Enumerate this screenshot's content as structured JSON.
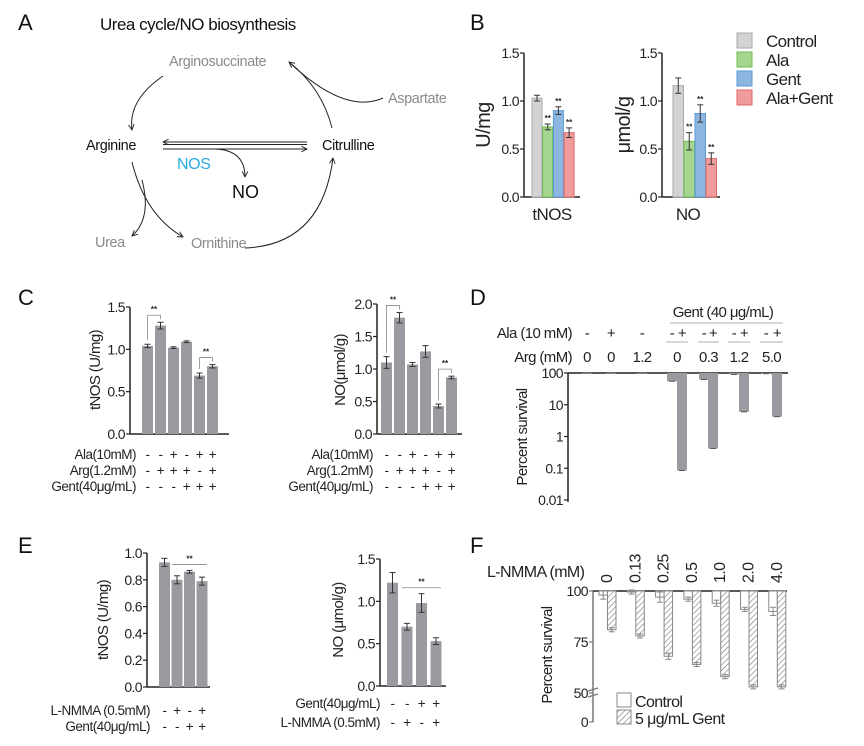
{
  "panel_labels": {
    "a": "A",
    "b": "B",
    "c": "C",
    "d": "D",
    "e": "E",
    "f": "F"
  },
  "diagram": {
    "title": "Urea cycle/NO biosynthesis",
    "nodes": {
      "arginosuccinate": "Arginosuccinate",
      "aspartate": "Aspartate",
      "arginine": "Arginine",
      "citrulline": "Citrulline",
      "nos": "NOS",
      "no": "NO",
      "urea": "Urea",
      "ornithine": "Ornithine"
    },
    "colors": {
      "enzyme": "#29a9e0",
      "secondary": "#8a8a8a",
      "primary": "#111111"
    }
  },
  "chart_data": [
    {
      "id": "b-tnos",
      "type": "bar",
      "ylabel": "U/mg",
      "xlabel": "tNOS",
      "ylim": [
        0,
        1.5
      ],
      "y_ticks": [
        0,
        0.5,
        1.0,
        1.5
      ],
      "y_tick_labels": [
        "0.0",
        "0.5",
        "1.0",
        "1.5"
      ],
      "categories": [
        "Control",
        "Ala",
        "Gent",
        "Ala+Gent"
      ],
      "series": [
        {
          "name": "tNOS",
          "values": [
            1.03,
            0.73,
            0.9,
            0.67
          ],
          "errors": [
            0.03,
            0.03,
            0.04,
            0.05
          ]
        }
      ],
      "bar_colors": [
        "#d3d3d3",
        "#a6d58f",
        "#8db6e0",
        "#f19c9c"
      ],
      "bar_strokes": [
        "#aaaaaa",
        "#6cbf4d",
        "#5a9bd5",
        "#e06666"
      ],
      "significance": [
        {
          "bar": 1,
          "label": "**"
        },
        {
          "bar": 2,
          "label": "**"
        },
        {
          "bar": 3,
          "label": "**"
        }
      ],
      "legend": [
        "Control",
        "Ala",
        "Gent",
        "Ala+Gent"
      ]
    },
    {
      "id": "b-no",
      "type": "bar",
      "ylabel": "μmol/g",
      "xlabel": "NO",
      "ylim": [
        0,
        1.5
      ],
      "y_ticks": [
        0,
        0.5,
        1.0,
        1.5
      ],
      "y_tick_labels": [
        "0.0",
        "0.5",
        "1.0",
        "1.5"
      ],
      "categories": [
        "Control",
        "Ala",
        "Gent",
        "Ala+Gent"
      ],
      "series": [
        {
          "name": "NO",
          "values": [
            1.16,
            0.58,
            0.87,
            0.4
          ],
          "errors": [
            0.08,
            0.09,
            0.09,
            0.06
          ]
        }
      ],
      "bar_colors": [
        "#d3d3d3",
        "#a6d58f",
        "#8db6e0",
        "#f19c9c"
      ],
      "bar_strokes": [
        "#aaaaaa",
        "#6cbf4d",
        "#5a9bd5",
        "#e06666"
      ],
      "significance": [
        {
          "bar": 1,
          "label": "**"
        },
        {
          "bar": 2,
          "label": "**"
        },
        {
          "bar": 3,
          "label": "**"
        }
      ]
    },
    {
      "id": "c-tnos",
      "type": "bar",
      "ylabel": "tNOS (U/mg)",
      "ylim": [
        0,
        1.5
      ],
      "y_ticks": [
        0,
        0.5,
        1.0,
        1.5
      ],
      "y_tick_labels": [
        "0.0",
        "0.5",
        "1.0",
        "1.5"
      ],
      "series": [
        {
          "name": "tNOS",
          "values": [
            1.04,
            1.28,
            1.02,
            1.09,
            0.69,
            0.8
          ],
          "errors": [
            0.02,
            0.04,
            0.01,
            0.01,
            0.03,
            0.02
          ]
        }
      ],
      "conditions": [
        {
          "label": "Ala(10mM)",
          "signs": [
            "-",
            "-",
            "+",
            "-",
            "+",
            "+"
          ]
        },
        {
          "label": "Arg(1.2mM)",
          "signs": [
            "-",
            "+",
            "+",
            "+",
            "-",
            "+"
          ]
        },
        {
          "label": "Gent(40μg/mL)",
          "signs": [
            "-",
            "-",
            "-",
            "+",
            "+",
            "+"
          ]
        }
      ],
      "brackets": [
        {
          "from": 0,
          "to": 1,
          "label": "**"
        },
        {
          "from": 4,
          "to": 5,
          "label": "**"
        }
      ]
    },
    {
      "id": "c-no",
      "type": "bar",
      "ylabel": "NO(μmol/g)",
      "ylim": [
        0,
        2.0
      ],
      "y_ticks": [
        0,
        0.5,
        1.0,
        1.5,
        2.0
      ],
      "y_tick_labels": [
        "0.0",
        "0.5",
        "1.0",
        "1.5",
        "2.0"
      ],
      "series": [
        {
          "name": "NO",
          "values": [
            1.1,
            1.79,
            1.07,
            1.27,
            0.43,
            0.87
          ],
          "errors": [
            0.09,
            0.08,
            0.03,
            0.09,
            0.03,
            0.02
          ]
        }
      ],
      "conditions": [
        {
          "label": "Ala(10mM)",
          "signs": [
            "-",
            "-",
            "+",
            "-",
            "+",
            "+"
          ]
        },
        {
          "label": "Arg(1.2mM)",
          "signs": [
            "-",
            "+",
            "+",
            "+",
            "-",
            "+"
          ]
        },
        {
          "label": "Gent(40μg/mL)",
          "signs": [
            "-",
            "-",
            "-",
            "+",
            "+",
            "+"
          ]
        }
      ],
      "brackets": [
        {
          "from": 0,
          "to": 1,
          "label": "**"
        },
        {
          "from": 4,
          "to": 5,
          "label": "**"
        }
      ]
    },
    {
      "id": "d",
      "type": "bar",
      "scale": "log",
      "ylabel": "Percent survival",
      "ylim": [
        0.01,
        100
      ],
      "y_ticks": [
        100,
        10,
        1,
        0.1,
        0.01
      ],
      "y_tick_labels": [
        "100",
        "10",
        "1",
        "0.1",
        "0.01"
      ],
      "header": "Gent (40 μg/mL)",
      "series": [
        {
          "name": "Percent survival",
          "values": [
            100,
            100,
            100,
            55,
            0.085,
            62,
            0.42,
            90,
            6.0,
            95,
            4.2
          ]
        }
      ],
      "ala_row": {
        "label": "Ala (10 mM)",
        "signs": [
          "-",
          "+",
          "-",
          "-",
          "+",
          "-",
          "+",
          "-",
          "+",
          "-",
          "+"
        ]
      },
      "arg_row": {
        "label": "Arg (mM)",
        "values": [
          "0",
          "0",
          "1.2",
          "0",
          "0.3",
          "1.2",
          "5.0"
        ]
      }
    },
    {
      "id": "e-tnos",
      "type": "bar",
      "ylabel": "tNOS (U/mg)",
      "ylim": [
        0,
        1.0
      ],
      "y_ticks": [
        0,
        0.2,
        0.4,
        0.6,
        0.8,
        1.0
      ],
      "y_tick_labels": [
        "0.0",
        "0.2",
        "0.4",
        "0.6",
        "0.8",
        "1.0"
      ],
      "series": [
        {
          "name": "tNOS",
          "values": [
            0.93,
            0.8,
            0.86,
            0.79
          ],
          "errors": [
            0.03,
            0.03,
            0.01,
            0.03
          ]
        }
      ],
      "conditions": [
        {
          "label": "L-NMMA (0.5mM)",
          "signs": [
            "-",
            "+",
            "-",
            "+"
          ]
        },
        {
          "label": "Gent(40μg/mL)",
          "signs": [
            "-",
            "-",
            "+",
            "+"
          ]
        }
      ],
      "sig_lines": [
        {
          "from": 1,
          "to": 3,
          "label": "**"
        }
      ]
    },
    {
      "id": "e-no",
      "type": "bar",
      "ylabel": "NO (μmol/g)",
      "ylim": [
        0,
        1.5
      ],
      "y_ticks": [
        0,
        0.5,
        1.0,
        1.5
      ],
      "y_tick_labels": [
        "0.0",
        "0.5",
        "1.0",
        "1.5"
      ],
      "series": [
        {
          "name": "NO",
          "values": [
            1.22,
            0.7,
            0.98,
            0.53
          ],
          "errors": [
            0.12,
            0.04,
            0.11,
            0.04
          ]
        }
      ],
      "conditions": [
        {
          "label": "Gent(40μg/mL)",
          "signs": [
            "-",
            "-",
            "+",
            "+"
          ]
        },
        {
          "label": "L-NMMA (0.5mM)",
          "signs": [
            "-",
            "+",
            "-",
            "+"
          ]
        }
      ],
      "sig_lines": [
        {
          "from": 1,
          "to": 3,
          "label": "**"
        }
      ]
    },
    {
      "id": "f",
      "type": "bar",
      "ylabel": "Percent survival",
      "axis_break": true,
      "category_title": "L-NMMA (mM)",
      "categories": [
        "0",
        "0.13",
        "0.25",
        "0.5",
        "1.0",
        "2.0",
        "4.0"
      ],
      "ylim": [
        0,
        100
      ],
      "y_ticks": [
        100,
        75,
        50,
        0
      ],
      "y_tick_labels": [
        "100",
        "75",
        "50",
        "0"
      ],
      "series": [
        {
          "name": "Control",
          "values": [
            98,
            99.5,
            97,
            96,
            94,
            91,
            90
          ],
          "errors": [
            2,
            1,
            2.5,
            1,
            1.5,
            1,
            2
          ]
        },
        {
          "name": "5 μg/mL Gent",
          "values": [
            81,
            78,
            68,
            64,
            58,
            53,
            53
          ],
          "errors": [
            1,
            1,
            1.5,
            1,
            1,
            1,
            1
          ]
        }
      ],
      "legend": [
        "Control",
        "5 μg/mL Gent"
      ]
    }
  ]
}
